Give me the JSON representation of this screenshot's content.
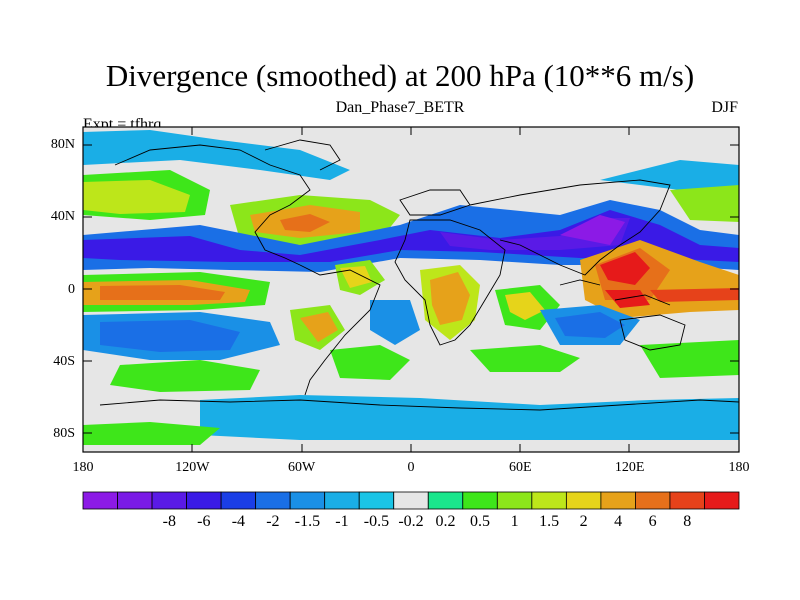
{
  "title": "Divergence (smoothed) at 200 hPa (10**6 m/s)",
  "subtitle": "Dan_Phase7_BETR",
  "left_label": "Expt = tfhrq",
  "right_label": "DJF",
  "lat_labels": [
    "80N",
    "40N",
    "0",
    "40S",
    "80S"
  ],
  "lat_values": [
    80,
    40,
    0,
    -40,
    -80
  ],
  "lon_labels": [
    "180",
    "120W",
    "60W",
    "0",
    "60E",
    "120E",
    "180"
  ],
  "lon_values": [
    -180,
    -120,
    -60,
    0,
    60,
    120,
    180
  ],
  "colorbar": {
    "levels": [
      "-8",
      "-6",
      "-4",
      "-2",
      "-1.5",
      "-1",
      "-0.5",
      "-0.2",
      "0.2",
      "0.5",
      "1",
      "1.5",
      "2",
      "4",
      "6",
      "8"
    ],
    "colors": [
      "#8c1ae6",
      "#7a1ae6",
      "#5a1ae6",
      "#3a1ae6",
      "#1a3ee6",
      "#1a6fe6",
      "#1a90e6",
      "#1aaee6",
      "#1ac4e6",
      "#e6e6e6",
      "#1ae68c",
      "#3ee61a",
      "#8ce61a",
      "#bde61a",
      "#e6d41a",
      "#e6a21a",
      "#e6701a",
      "#e6421a",
      "#e61a1a"
    ]
  },
  "map_bounds": {
    "lon_min": -180,
    "lon_max": 180,
    "lat_min": -90,
    "lat_max": 90
  }
}
